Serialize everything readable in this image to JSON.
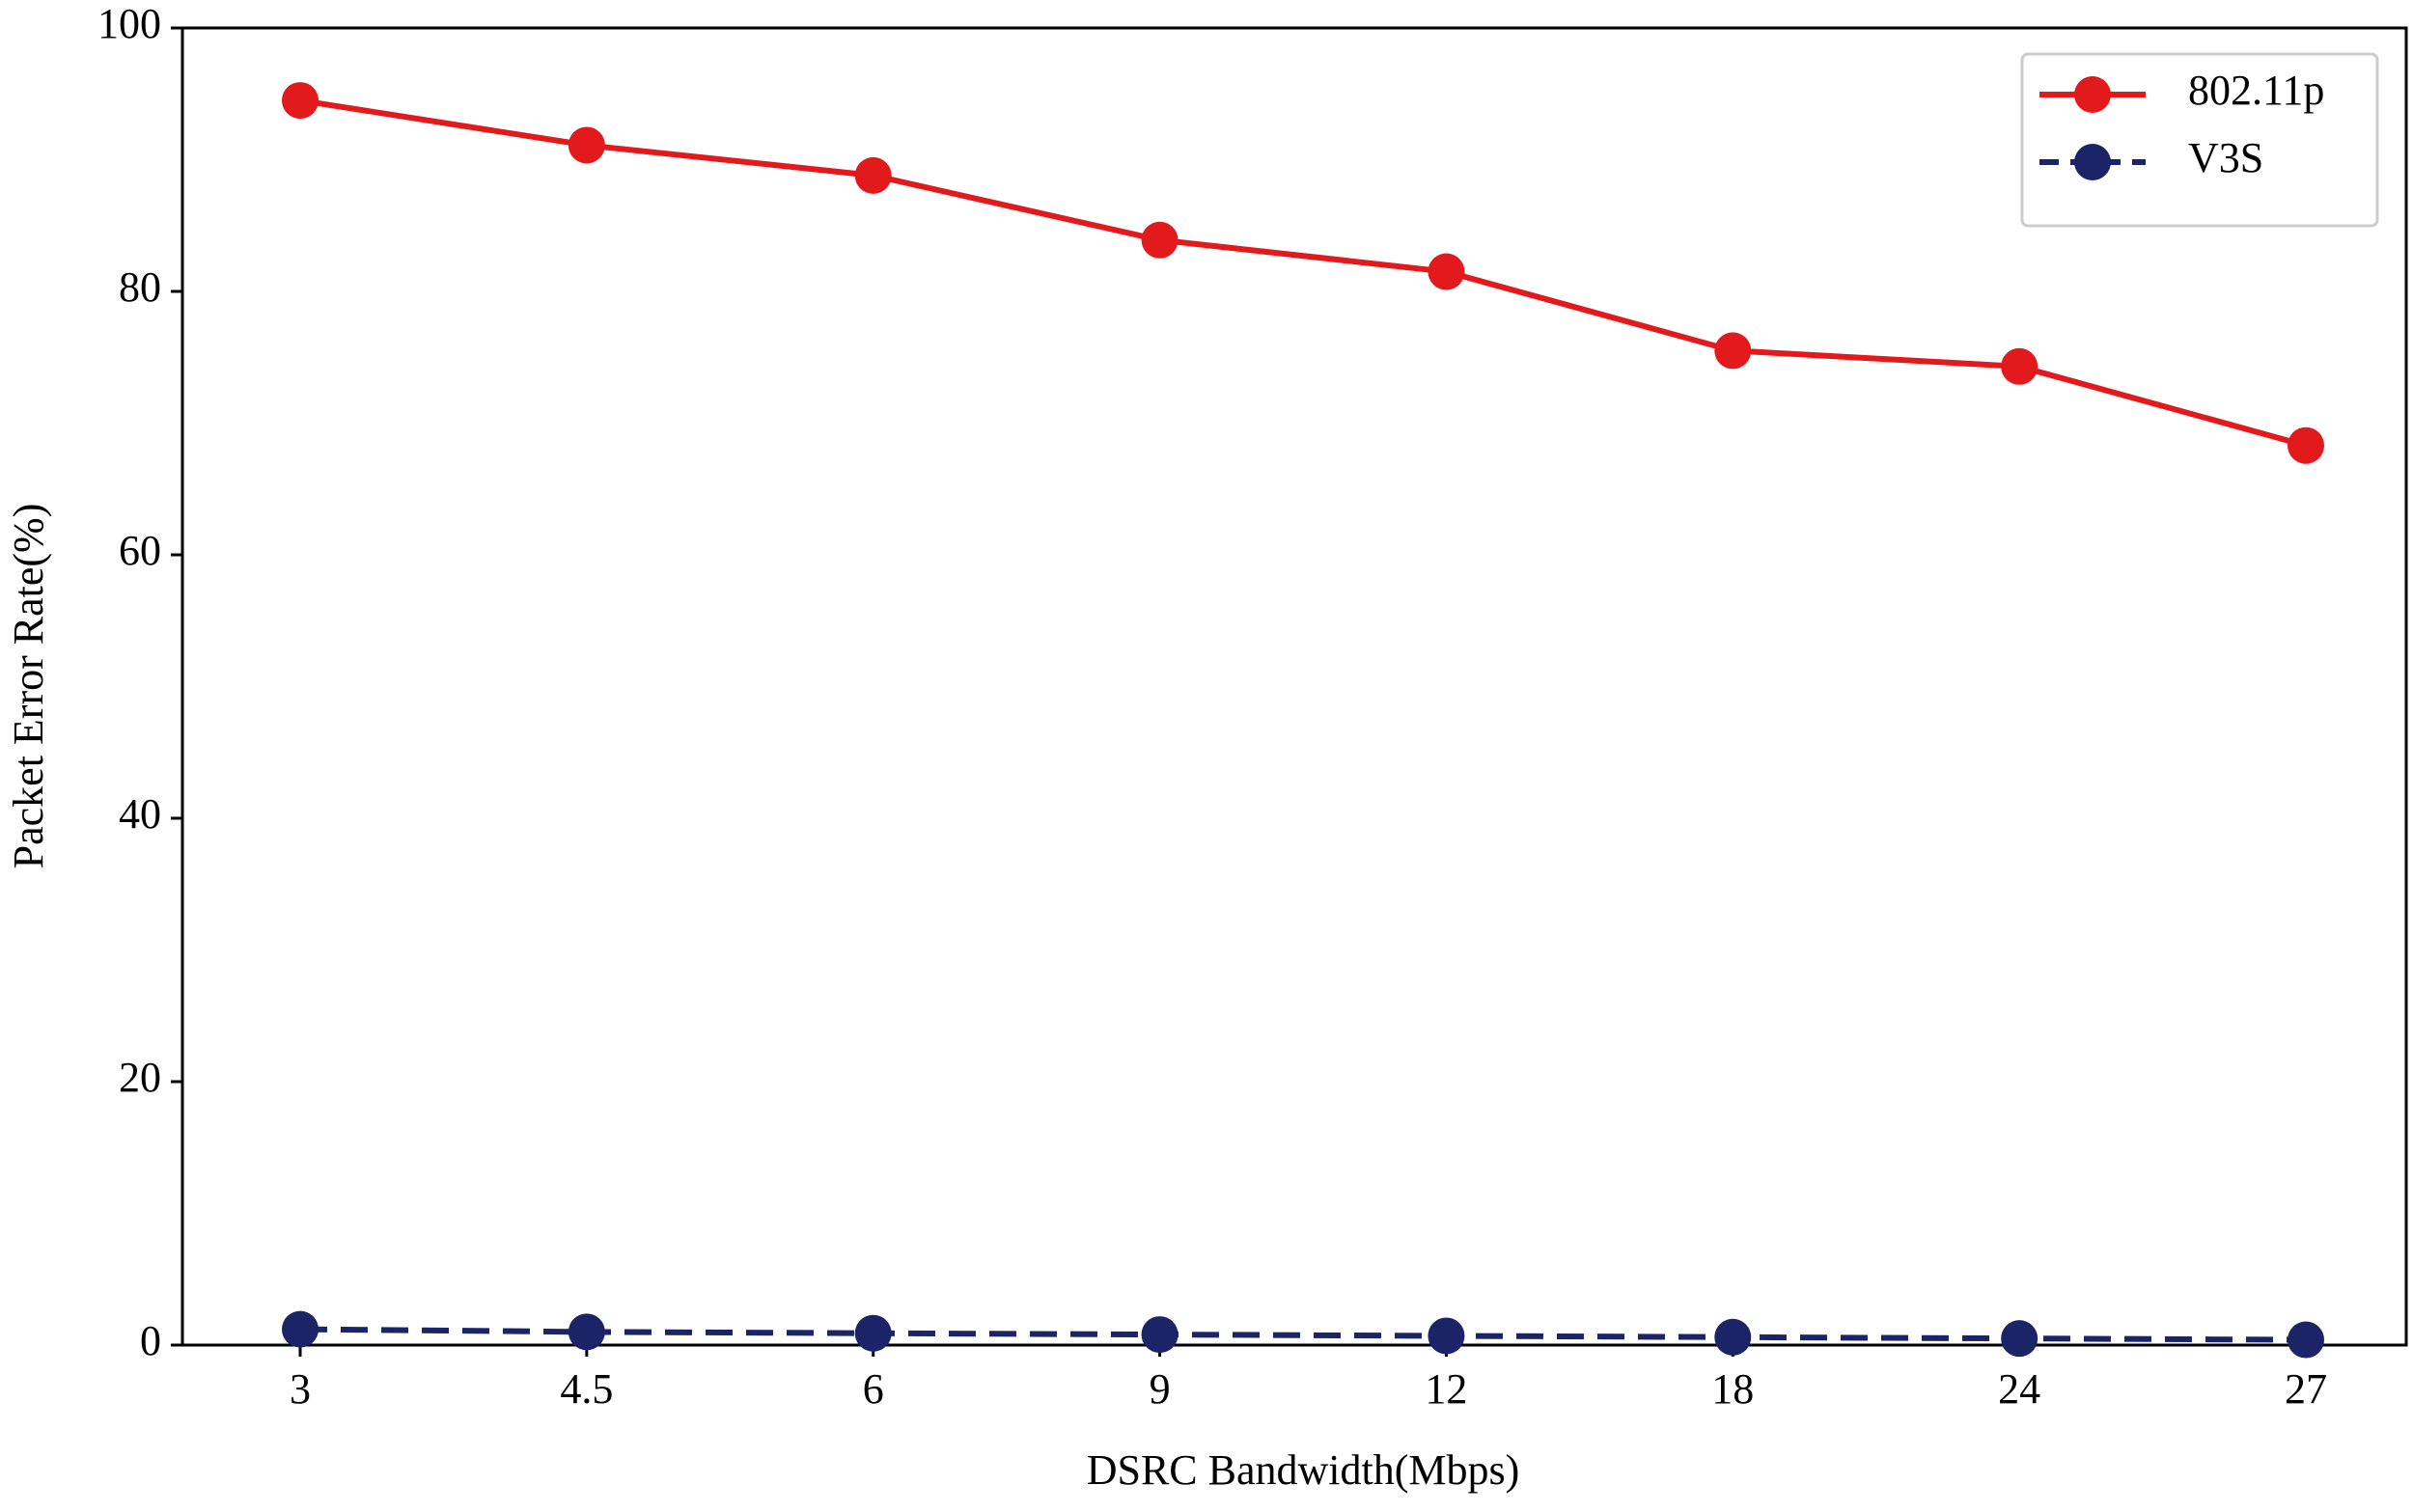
{
  "chart_data": {
    "type": "line",
    "x_label": "DSRC Bandwidth(Mbps)",
    "y_label": "Packet Error Rate(%)",
    "categories": [
      "3",
      "4.5",
      "6",
      "9",
      "12",
      "18",
      "24",
      "27"
    ],
    "series": [
      {
        "name": "802.11p",
        "color": "#e31a1c",
        "linestyle": "solid",
        "values": [
          94.5,
          91.1,
          88.8,
          83.9,
          81.5,
          75.5,
          74.3,
          68.3
        ]
      },
      {
        "name": "V3S",
        "color": "#1a2466",
        "linestyle": "dashed",
        "values": [
          1.2,
          1.0,
          0.9,
          0.8,
          0.7,
          0.6,
          0.5,
          0.4
        ]
      }
    ],
    "ylim": [
      0,
      100
    ],
    "yticks": [
      0,
      20,
      40,
      60,
      80,
      100
    ],
    "grid": false,
    "legend": "upper right"
  }
}
